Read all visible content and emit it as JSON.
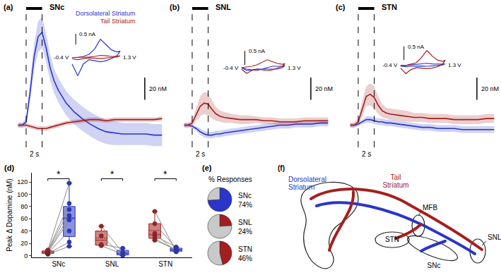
{
  "chart_data": [
    {
      "panel": "(a)",
      "type": "line",
      "title": "SNc",
      "tick_labels": false,
      "x": [
        -1,
        -0.5,
        0,
        0.5,
        1,
        1.5,
        2,
        2.5,
        3,
        3.5,
        4,
        5,
        6,
        7,
        8,
        9,
        10,
        11,
        12,
        13,
        14,
        15,
        16,
        17
      ],
      "xlim": [
        -1.5,
        17.5
      ],
      "ylim": [
        -22,
        103
      ],
      "stimulus": [
        0,
        2
      ],
      "stimulus_label": "2 s",
      "scale_bar": 20,
      "scale_bar_label": "20 nM",
      "series": [
        {
          "color": "#2a35c9",
          "values": [
            0,
            0,
            3,
            30,
            62,
            80,
            84,
            70,
            52,
            40,
            32,
            20,
            12,
            6,
            1,
            -3,
            -6,
            -7,
            -8,
            -8,
            -8,
            -8,
            -9,
            -9
          ],
          "error": [
            2,
            2,
            3,
            8,
            12,
            14,
            14,
            13,
            12,
            11,
            11,
            11,
            11,
            11,
            11,
            11,
            11,
            11,
            10,
            10,
            10,
            10,
            10,
            10
          ]
        },
        {
          "color": "#a51e1e",
          "values": [
            0,
            0,
            0,
            -1,
            -2,
            -3,
            -3,
            -3,
            -2,
            -1,
            0,
            2,
            3,
            4,
            5,
            5,
            4,
            5,
            5,
            5,
            5,
            5,
            5,
            6
          ],
          "error": [
            2,
            2,
            2,
            2,
            2,
            2,
            2,
            2,
            2,
            2,
            2,
            2,
            2,
            2,
            2,
            2,
            2,
            2,
            2,
            2,
            2,
            2,
            2,
            2
          ]
        }
      ],
      "inset": {
        "type": "line",
        "legend": "top right",
        "x": [
          -0.4,
          -0.2,
          0,
          0.2,
          0.4,
          0.6,
          0.8,
          1.0,
          1.2,
          1.3,
          1.2,
          1.0,
          0.8,
          0.6,
          0.4,
          0.2,
          0,
          -0.2,
          -0.4
        ],
        "xlim": [
          -0.45,
          1.35
        ],
        "ylim": [
          -1.0,
          1.1
        ],
        "x_labels": [
          {
            "value": -0.4,
            "label": "-0.4 V"
          },
          {
            "value": 1.3,
            "label": "1.3 V"
          }
        ],
        "scale_bar": 0.5,
        "scale_bar_label": "0.5 nA",
        "series": [
          {
            "name": "Dorsolateral Striatum",
            "color": "#2a35c9",
            "values": [
              0,
              0,
              0.05,
              0.15,
              0.4,
              0.85,
              0.6,
              0.35,
              0.25,
              0.3,
              0.1,
              -0.05,
              -0.15,
              -0.2,
              -0.15,
              -0.1,
              -0.3,
              -0.85,
              -0.3
            ]
          },
          {
            "name": "Tail Striatum",
            "color": "#a51e1e",
            "values": [
              0,
              0,
              0,
              0.02,
              0.05,
              0.1,
              0.08,
              0.05,
              0.05,
              0.08,
              0.03,
              0,
              -0.03,
              -0.05,
              -0.03,
              -0.02,
              -0.05,
              -0.1,
              -0.05
            ]
          }
        ]
      }
    },
    {
      "panel": "(b)",
      "type": "line",
      "title": "SNL",
      "tick_labels": false,
      "x": [
        -1,
        -0.5,
        0,
        0.5,
        1,
        1.5,
        2,
        2.5,
        3,
        3.5,
        4,
        5,
        6,
        7,
        8,
        9,
        10,
        11,
        12,
        13,
        14,
        15,
        16,
        17
      ],
      "xlim": [
        -1.5,
        17.5
      ],
      "ylim": [
        -22,
        103
      ],
      "stimulus": [
        0,
        2
      ],
      "stimulus_label": "2 s",
      "scale_bar": 20,
      "scale_bar_label": "20 nM",
      "series": [
        {
          "color": "#2a35c9",
          "values": [
            0,
            0,
            -1,
            -3,
            -6,
            -8,
            -9,
            -9,
            -8,
            -8,
            -7,
            -6,
            -5,
            -4,
            -3,
            -2,
            -1,
            0,
            0,
            1,
            1,
            1,
            2,
            2
          ],
          "error": [
            2,
            2,
            2,
            2,
            3,
            3,
            3,
            3,
            3,
            3,
            3,
            3,
            3,
            3,
            3,
            3,
            3,
            3,
            3,
            3,
            3,
            3,
            3,
            3
          ]
        },
        {
          "color": "#a51e1e",
          "values": [
            0,
            0,
            2,
            10,
            17,
            20,
            19,
            14,
            10,
            8,
            7,
            6,
            5,
            5,
            5,
            4,
            4,
            3,
            3,
            3,
            4,
            4,
            4,
            4
          ],
          "error": [
            2,
            2,
            3,
            6,
            9,
            10,
            10,
            8,
            6,
            5,
            5,
            4,
            4,
            4,
            3,
            3,
            3,
            3,
            3,
            3,
            3,
            3,
            3,
            3
          ]
        }
      ],
      "inset": {
        "type": "line",
        "x": [
          -0.4,
          -0.2,
          0,
          0.2,
          0.4,
          0.6,
          0.8,
          1.0,
          1.2,
          1.3,
          1.2,
          1.0,
          0.8,
          0.6,
          0.4,
          0.2,
          0,
          -0.2,
          -0.4
        ],
        "xlim": [
          -0.45,
          1.35
        ],
        "ylim": [
          -0.4,
          0.6
        ],
        "x_labels": [
          {
            "value": -0.4,
            "label": "-0.4 V"
          },
          {
            "value": 1.3,
            "label": "1.3 V"
          }
        ],
        "scale_bar": 0.5,
        "scale_bar_label": "0.5 nA",
        "series": [
          {
            "color": "#2a35c9",
            "values": [
              0,
              -0.05,
              -0.08,
              -0.1,
              -0.05,
              0,
              0.05,
              0.05,
              0.05,
              0.08,
              0,
              -0.05,
              -0.05,
              -0.05,
              -0.05,
              -0.05,
              -0.08,
              -0.1,
              0
            ]
          },
          {
            "color": "#a51e1e",
            "values": [
              0,
              0.02,
              0.05,
              0.1,
              0.2,
              0.28,
              0.22,
              0.15,
              0.12,
              0.15,
              0.05,
              -0.02,
              -0.08,
              -0.1,
              -0.08,
              -0.05,
              -0.1,
              -0.2,
              -0.05
            ]
          }
        ]
      }
    },
    {
      "panel": "(c)",
      "type": "line",
      "title": "STN",
      "tick_labels": false,
      "x": [
        -1,
        -0.5,
        0,
        0.5,
        1,
        1.5,
        2,
        2.5,
        3,
        3.5,
        4,
        5,
        6,
        7,
        8,
        9,
        10,
        11,
        12,
        13,
        14,
        15,
        16,
        17
      ],
      "xlim": [
        -1.5,
        17.5
      ],
      "ylim": [
        -22,
        103
      ],
      "stimulus": [
        0,
        2
      ],
      "stimulus_label": "2 s",
      "scale_bar": 20,
      "scale_bar_label": "20 nM",
      "series": [
        {
          "color": "#2a35c9",
          "values": [
            0,
            0,
            1,
            3,
            5,
            5,
            4,
            3,
            3,
            2,
            2,
            1,
            0,
            -1,
            -2,
            -2,
            -3,
            -3,
            -3,
            -4,
            -4,
            -4,
            -4,
            -4
          ],
          "error": [
            2,
            2,
            2,
            2,
            3,
            3,
            3,
            3,
            3,
            3,
            3,
            3,
            3,
            3,
            3,
            3,
            3,
            3,
            3,
            3,
            3,
            3,
            3,
            3
          ]
        },
        {
          "color": "#a51e1e",
          "values": [
            0,
            0,
            3,
            15,
            26,
            28,
            25,
            18,
            13,
            11,
            10,
            9,
            8,
            7,
            7,
            6,
            6,
            6,
            5,
            5,
            5,
            5,
            6,
            6
          ],
          "error": [
            2,
            2,
            3,
            7,
            9,
            10,
            10,
            8,
            6,
            5,
            5,
            5,
            5,
            4,
            4,
            4,
            4,
            4,
            4,
            4,
            4,
            4,
            4,
            4
          ]
        }
      ],
      "inset": {
        "type": "line",
        "x": [
          -0.4,
          -0.2,
          0,
          0.2,
          0.4,
          0.6,
          0.8,
          1.0,
          1.2,
          1.3,
          1.2,
          1.0,
          0.8,
          0.6,
          0.4,
          0.2,
          0,
          -0.2,
          -0.4
        ],
        "xlim": [
          -0.45,
          1.35
        ],
        "ylim": [
          -0.5,
          0.7
        ],
        "x_labels": [
          {
            "value": -0.4,
            "label": "-0.4 V"
          },
          {
            "value": 1.3,
            "label": "1.3 V"
          }
        ],
        "scale_bar": 0.5,
        "scale_bar_label": "0.5 nA",
        "series": [
          {
            "color": "#2a35c9",
            "values": [
              0,
              0,
              0.02,
              0.04,
              0.06,
              0.08,
              0.06,
              0.05,
              0.05,
              0.06,
              0.02,
              0,
              -0.02,
              -0.03,
              -0.02,
              -0.02,
              -0.03,
              -0.05,
              -0.02
            ]
          },
          {
            "color": "#a51e1e",
            "values": [
              0,
              0,
              0.05,
              0.1,
              0.3,
              0.55,
              0.35,
              0.2,
              0.15,
              0.2,
              0.05,
              -0.05,
              -0.1,
              -0.12,
              -0.1,
              -0.08,
              -0.15,
              -0.3,
              -0.1
            ]
          }
        ]
      }
    },
    {
      "panel": "(d)",
      "type": "box",
      "categories": [
        "SNc",
        "SNL",
        "STN"
      ],
      "ylabel": "Peak Δ Dopamine (nM)",
      "ylim": [
        -3,
        135
      ],
      "yticks": [
        0,
        20,
        40,
        60,
        80,
        100,
        120
      ],
      "significance": [
        "*",
        "*",
        "*"
      ],
      "series": [
        {
          "color": "#a51e1e",
          "values": [
            [
              2,
              3,
              4,
              5,
              6,
              7,
              8,
              9
            ],
            [
              16,
              18,
              32,
              48
            ],
            [
              25,
              28,
              32,
              36,
              52,
              72
            ]
          ]
        },
        {
          "color": "#2a35c9",
          "values": [
            [
              15,
              22,
              40,
              58,
              65,
              75,
              85,
              118
            ],
            [
              2,
              12,
              0,
              5
            ],
            [
              10,
              8,
              14,
              6,
              12,
              7
            ]
          ]
        }
      ]
    },
    {
      "panel": "(e)",
      "type": "pie",
      "title": "% Responses",
      "pies": [
        {
          "label": "SNc",
          "values": [
            74,
            26
          ],
          "colors": [
            "#2a35c9",
            "#c9c9c9"
          ],
          "value_labels": [
            "74%",
            null
          ]
        },
        {
          "label": "SNL",
          "values": [
            24,
            76
          ],
          "colors": [
            "#a51e1e",
            "#c9c9c9"
          ],
          "value_labels": [
            "24%",
            null
          ]
        },
        {
          "label": "STN",
          "values": [
            46,
            54
          ],
          "colors": [
            "#a51e1e",
            "#c9c9c9"
          ],
          "value_labels": [
            "46%",
            null
          ]
        }
      ]
    }
  ],
  "diagram": {
    "panel": "(f)",
    "dorsolateral": "Dorsolateral Striatum",
    "tail": "Tail Striatum",
    "mfb": "MFB",
    "snl": "SNL",
    "stn": "STN",
    "snc": "SNc"
  }
}
